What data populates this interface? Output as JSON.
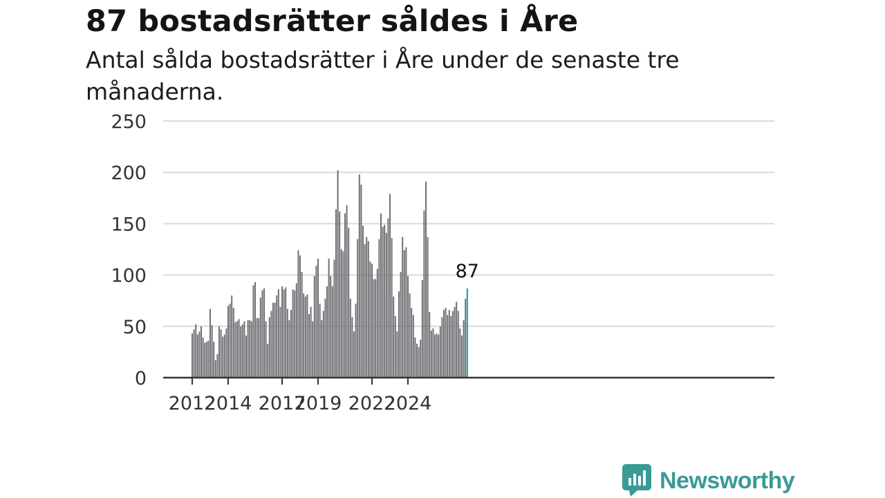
{
  "title": "87 bostadsrätter såldes i Åre",
  "subtitle": "Antal sålda bostadsrätter i Åre under de senaste tre månaderna.",
  "brand": {
    "name": "Newsworthy"
  },
  "colors": {
    "bar": "#707075",
    "highlight": "#1a9a96",
    "grid": "#d9d9d9",
    "axis": "#333333",
    "brand": "#3a9a96"
  },
  "chart_data": {
    "type": "bar",
    "title": "87 bostadsrätter såldes i Åre",
    "subtitle": "Antal sålda bostadsrätter i Åre under de senaste tre månaderna.",
    "xlabel": "",
    "ylabel": "",
    "ylim": [
      0,
      250
    ],
    "yticks": [
      "0",
      "50",
      "100",
      "150",
      "200",
      "250"
    ],
    "xticks": [
      {
        "label": "2012",
        "index": 0
      },
      {
        "label": "2014",
        "index": 20
      },
      {
        "label": "2017",
        "index": 50
      },
      {
        "label": "2019",
        "index": 70
      },
      {
        "label": "2022",
        "index": 100
      },
      {
        "label": "2024",
        "index": 120
      }
    ],
    "grid": true,
    "last_value_label": "87",
    "values": [
      43,
      47,
      52,
      42,
      45,
      50,
      39,
      34,
      35,
      36,
      67,
      51,
      35,
      17,
      23,
      50,
      47,
      40,
      42,
      48,
      70,
      72,
      80,
      68,
      54,
      55,
      57,
      50,
      52,
      55,
      41,
      56,
      56,
      55,
      90,
      93,
      58,
      58,
      78,
      85,
      87,
      55,
      33,
      59,
      65,
      73,
      73,
      80,
      86,
      69,
      89,
      86,
      88,
      67,
      56,
      66,
      86,
      85,
      92,
      124,
      119,
      103,
      82,
      79,
      81,
      62,
      69,
      55,
      99,
      109,
      116,
      72,
      56,
      65,
      77,
      89,
      116,
      99,
      89,
      115,
      164,
      202,
      162,
      125,
      123,
      160,
      168,
      146,
      77,
      59,
      45,
      72,
      135,
      198,
      188,
      148,
      130,
      137,
      133,
      113,
      111,
      96,
      96,
      106,
      135,
      160,
      147,
      149,
      141,
      155,
      179,
      136,
      79,
      60,
      45,
      84,
      103,
      137,
      124,
      127,
      99,
      82,
      68,
      61,
      39,
      33,
      30,
      37,
      95,
      163,
      191,
      137,
      64,
      46,
      48,
      42,
      43,
      42,
      50,
      59,
      66,
      68,
      61,
      66,
      60,
      65,
      69,
      74,
      65,
      48,
      41,
      56,
      77,
      87
    ]
  }
}
